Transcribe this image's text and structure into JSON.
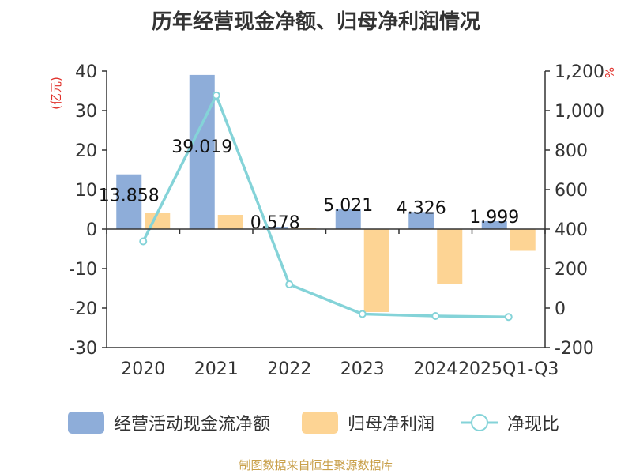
{
  "chart_data": {
    "type": "bar",
    "title": "历年经营现金净额、归母净利润情况",
    "categories": [
      "2020",
      "2021",
      "2022",
      "2023",
      "2024",
      "2025Q1-Q3"
    ],
    "y_left": {
      "label": "(亿元)",
      "ylim": [
        -30,
        40
      ],
      "ticks": [
        -30,
        -20,
        -10,
        0,
        10,
        20,
        30,
        40
      ]
    },
    "y_right": {
      "label": "%",
      "ylim": [
        -200,
        1200
      ],
      "ticks": [
        -200,
        0,
        200,
        400,
        600,
        800,
        1000,
        1200
      ],
      "tick_labels": [
        "-200",
        "0",
        "200",
        "400",
        "600",
        "800",
        "1,000",
        "1,200"
      ]
    },
    "series": [
      {
        "name": "经营活动现金流净额",
        "type": "bar",
        "axis": "left",
        "color": "#8eadd9",
        "values": [
          13.858,
          39.019,
          0.578,
          5.021,
          4.326,
          1.999
        ],
        "data_labels": [
          "13.858",
          "39.019",
          "0.578",
          "5.021",
          "4.326",
          "1.999"
        ]
      },
      {
        "name": "归母净利润",
        "type": "bar",
        "axis": "left",
        "color": "#fdd494",
        "values": [
          4.1,
          3.6,
          0.3,
          -21.0,
          -14.0,
          -5.5
        ]
      },
      {
        "name": "净现比",
        "type": "line",
        "axis": "right",
        "color": "#84d3d8",
        "values": [
          338,
          1077,
          120,
          -30,
          -40,
          -45
        ]
      }
    ],
    "legend_position": "bottom",
    "source": "制图数据来自恒生聚源数据库"
  }
}
